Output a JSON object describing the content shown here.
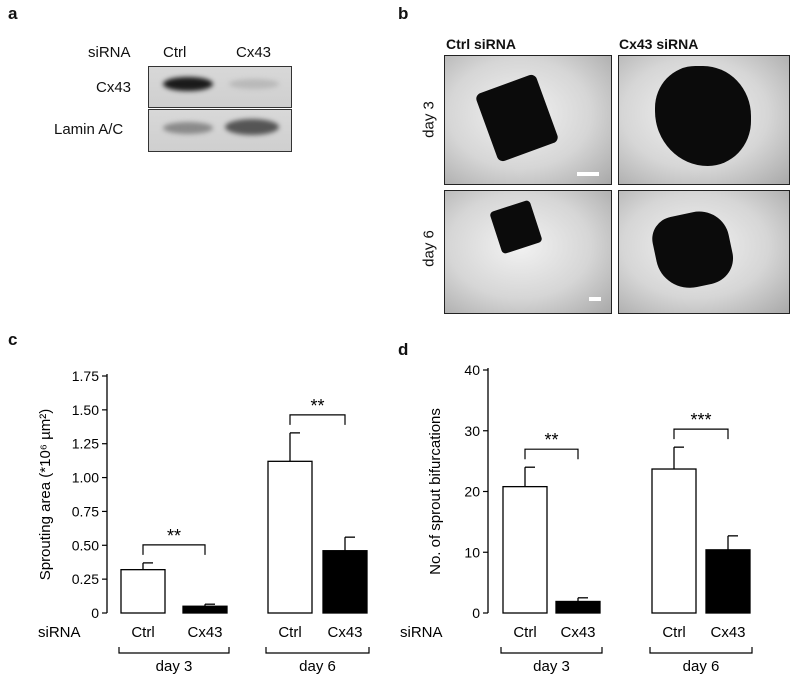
{
  "panels": {
    "a": {
      "label": "a",
      "sirna_label": "siRNA",
      "conditions": [
        "Ctrl",
        "Cx43"
      ],
      "rows": [
        "Cx43",
        "Lamin A/C"
      ]
    },
    "b": {
      "label": "b",
      "columns": [
        "Ctrl siRNA",
        "Cx43 siRNA"
      ],
      "rows": [
        "day 3",
        "day 6"
      ]
    },
    "c": {
      "label": "c"
    },
    "d": {
      "label": "d"
    }
  },
  "chart_data": [
    {
      "type": "bar",
      "panel": "c",
      "ylabel": "Sprouting area (*10⁶ µm²)",
      "ylim": [
        0,
        1.75
      ],
      "yticks": [
        "0",
        "0.25",
        "0.50",
        "0.75",
        "1.00",
        "1.25",
        "1.50",
        "1.75"
      ],
      "categories": [
        "Ctrl",
        "Cx43",
        "Ctrl",
        "Cx43"
      ],
      "groups": [
        "day 3",
        "day 6"
      ],
      "group_prefix": "siRNA",
      "values": [
        0.32,
        0.05,
        1.12,
        0.46
      ],
      "errors": [
        0.05,
        0.015,
        0.21,
        0.1
      ],
      "fills": [
        "#ffffff",
        "#000000",
        "#ffffff",
        "#000000"
      ],
      "significance": [
        "**",
        "**"
      ]
    },
    {
      "type": "bar",
      "panel": "d",
      "ylabel": "No. of sprout bifurcations",
      "ylim": [
        0,
        40
      ],
      "yticks": [
        "0",
        "10",
        "20",
        "30",
        "40"
      ],
      "categories": [
        "Ctrl",
        "Cx43",
        "Ctrl",
        "Cx43"
      ],
      "groups": [
        "day 3",
        "day 6"
      ],
      "group_prefix": "siRNA",
      "values": [
        20.8,
        1.9,
        23.7,
        10.4
      ],
      "errors": [
        3.2,
        0.6,
        3.6,
        2.3
      ],
      "fills": [
        "#ffffff",
        "#000000",
        "#ffffff",
        "#000000"
      ],
      "significance": [
        "**",
        "***"
      ]
    }
  ]
}
